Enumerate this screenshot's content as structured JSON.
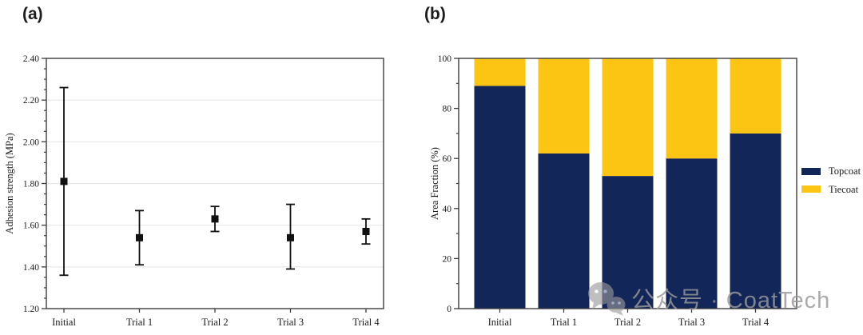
{
  "figure": {
    "panel_a_label": "(a)",
    "panel_b_label": "(b)",
    "background_color": "#ffffff",
    "axis_color": "#3d3d3d",
    "grid_color": "#e8e8e8",
    "text_color": "#1a1a1a"
  },
  "watermark": {
    "icon": "wechat-bubbles-icon",
    "text": "公众号 · CoatTech",
    "color": "#999999"
  },
  "legend": {
    "position": "right-of-chart-b",
    "entries": [
      {
        "label": "Topcoat",
        "color": "#13265a"
      },
      {
        "label": "Tiecoat",
        "color": "#fdc513"
      }
    ]
  },
  "chart_data": [
    {
      "id": "adhesion-strength",
      "type": "scatter",
      "subtype": "errorbar",
      "title": "",
      "xlabel": "",
      "ylabel": "Adhesion strength (MPa)",
      "categories": [
        "Initial",
        "Trial 1",
        "Trial 2",
        "Trial 3",
        "Trial 4"
      ],
      "values": [
        1.81,
        1.54,
        1.63,
        1.54,
        1.57
      ],
      "error_low": [
        1.36,
        1.41,
        1.57,
        1.39,
        1.51
      ],
      "error_high": [
        2.26,
        1.67,
        1.69,
        1.7,
        1.63
      ],
      "ylim": [
        1.2,
        2.4
      ],
      "ytick_step": 0.2,
      "ytick_minor_step": 0.05,
      "ytick_decimals": 2,
      "grid": true,
      "legend": false,
      "marker": "square",
      "marker_color": "#111111"
    },
    {
      "id": "area-fraction",
      "type": "bar",
      "subtype": "stacked",
      "title": "",
      "xlabel": "",
      "ylabel": "Area Fraction (%)",
      "categories": [
        "Initial",
        "Trial 1",
        "Trial 2",
        "Trial 3",
        "Trial 4"
      ],
      "series": [
        {
          "name": "Topcoat",
          "color": "#13265a",
          "values": [
            89,
            62,
            53,
            60,
            70
          ]
        },
        {
          "name": "Tiecoat",
          "color": "#fdc513",
          "values": [
            11,
            38,
            47,
            40,
            30
          ]
        }
      ],
      "ylim": [
        0,
        100
      ],
      "ytick_step": 20,
      "ytick_minor_step": 10,
      "ytick_decimals": 0,
      "grid": false,
      "legend": true,
      "legend_position": "right"
    }
  ]
}
